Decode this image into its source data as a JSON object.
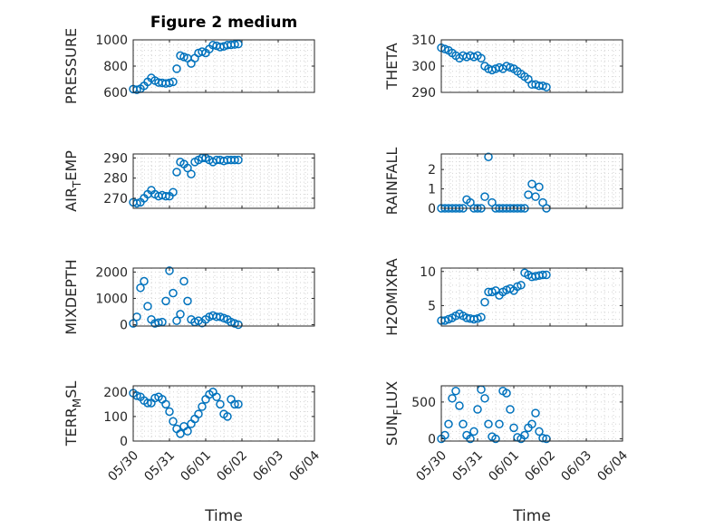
{
  "figure": {
    "title": "Figure 2 medium"
  },
  "chart_data": [
    {
      "type": "scatter",
      "title": "Figure 2 medium",
      "ylabel": "PRESSURE",
      "ylim": [
        600,
        1000
      ],
      "yticks": [
        600,
        800,
        1000
      ],
      "xlim": [
        0,
        5
      ],
      "grid": true,
      "marker": "o",
      "color": "#0072BD",
      "series": [
        {
          "x": [
            0.0,
            0.1,
            0.2,
            0.3,
            0.4,
            0.5,
            0.6,
            0.7,
            0.8,
            0.9,
            1.0,
            1.1,
            1.2,
            1.3,
            1.4,
            1.5,
            1.6,
            1.7,
            1.8,
            1.9,
            2.0,
            2.1,
            2.2,
            2.3,
            2.4,
            2.5,
            2.6,
            2.7,
            2.8,
            2.9
          ],
          "y": [
            625,
            620,
            628,
            650,
            680,
            710,
            690,
            675,
            672,
            668,
            672,
            680,
            780,
            880,
            870,
            860,
            820,
            860,
            900,
            910,
            900,
            930,
            960,
            955,
            945,
            950,
            960,
            962,
            965,
            968
          ]
        }
      ]
    },
    {
      "type": "scatter",
      "ylabel": "THETA",
      "ylim": [
        290,
        310
      ],
      "yticks": [
        290,
        300,
        310
      ],
      "xlim": [
        0,
        5
      ],
      "grid": true,
      "marker": "o",
      "color": "#0072BD",
      "series": [
        {
          "x": [
            0.0,
            0.1,
            0.2,
            0.3,
            0.4,
            0.5,
            0.6,
            0.7,
            0.8,
            0.9,
            1.0,
            1.1,
            1.2,
            1.3,
            1.4,
            1.5,
            1.6,
            1.7,
            1.8,
            1.9,
            2.0,
            2.1,
            2.2,
            2.3,
            2.4,
            2.5,
            2.6,
            2.7,
            2.8,
            2.9
          ],
          "y": [
            307,
            306.5,
            306,
            305,
            304,
            303,
            304,
            303.5,
            304,
            303.5,
            304,
            303,
            300,
            299,
            298.5,
            299,
            299.5,
            299,
            300,
            299.5,
            299,
            298,
            297,
            296,
            295,
            293,
            293,
            292.5,
            292.5,
            292
          ]
        }
      ]
    },
    {
      "type": "scatter",
      "ylabel": "AIR_TEMP",
      "ylim": [
        265,
        292
      ],
      "yticks": [
        270,
        280,
        290
      ],
      "xlim": [
        0,
        5
      ],
      "grid": true,
      "marker": "o",
      "color": "#0072BD",
      "series": [
        {
          "x": [
            0.0,
            0.1,
            0.2,
            0.3,
            0.4,
            0.5,
            0.6,
            0.7,
            0.8,
            0.9,
            1.0,
            1.1,
            1.2,
            1.3,
            1.4,
            1.5,
            1.6,
            1.7,
            1.8,
            1.9,
            2.0,
            2.1,
            2.2,
            2.3,
            2.4,
            2.5,
            2.6,
            2.7,
            2.8,
            2.9
          ],
          "y": [
            268,
            267.5,
            268,
            270,
            272,
            274,
            272,
            271,
            271.5,
            271,
            271,
            273,
            283,
            288,
            287,
            285,
            282,
            288,
            289,
            290,
            290,
            289,
            288,
            289,
            289,
            288.5,
            289,
            289,
            289,
            289
          ]
        }
      ]
    },
    {
      "type": "scatter",
      "ylabel": "RAINFALL",
      "ylim": [
        0,
        2.8
      ],
      "yticks": [
        0,
        1,
        2
      ],
      "xlim": [
        0,
        5
      ],
      "grid": true,
      "marker": "o",
      "color": "#0072BD",
      "series": [
        {
          "x": [
            0.0,
            0.1,
            0.2,
            0.3,
            0.4,
            0.5,
            0.6,
            0.7,
            0.8,
            0.9,
            1.0,
            1.1,
            1.2,
            1.3,
            1.4,
            1.5,
            1.6,
            1.7,
            1.8,
            1.9,
            2.0,
            2.1,
            2.2,
            2.3,
            2.4,
            2.5,
            2.6,
            2.7,
            2.8,
            2.9
          ],
          "y": [
            0,
            0,
            0,
            0,
            0,
            0,
            0,
            0.45,
            0.3,
            0,
            0,
            0,
            0.6,
            2.65,
            0.3,
            0,
            0,
            0,
            0,
            0,
            0,
            0,
            0,
            0,
            0.7,
            1.25,
            0.6,
            1.1,
            0.3,
            0
          ]
        }
      ]
    },
    {
      "type": "scatter",
      "ylabel": "MIXDEPTH",
      "ylim": [
        -50,
        2150
      ],
      "yticks": [
        0,
        1000,
        2000
      ],
      "xlim": [
        0,
        5
      ],
      "grid": true,
      "marker": "o",
      "color": "#0072BD",
      "series": [
        {
          "x": [
            0.0,
            0.1,
            0.2,
            0.3,
            0.4,
            0.5,
            0.6,
            0.7,
            0.8,
            0.9,
            1.0,
            1.1,
            1.2,
            1.3,
            1.4,
            1.5,
            1.6,
            1.7,
            1.8,
            1.9,
            2.0,
            2.1,
            2.2,
            2.3,
            2.4,
            2.5,
            2.6,
            2.7,
            2.8,
            2.9
          ],
          "y": [
            50,
            300,
            1400,
            1650,
            700,
            200,
            50,
            80,
            100,
            900,
            2050,
            1200,
            150,
            400,
            1650,
            900,
            200,
            100,
            150,
            60,
            200,
            300,
            350,
            300,
            300,
            250,
            200,
            100,
            50,
            0
          ]
        }
      ]
    },
    {
      "type": "scatter",
      "ylabel": "H2OMIXRA",
      "ylim": [
        2,
        10.5
      ],
      "yticks": [
        5,
        10
      ],
      "xlim": [
        0,
        5
      ],
      "grid": true,
      "marker": "o",
      "color": "#0072BD",
      "series": [
        {
          "x": [
            0.0,
            0.1,
            0.2,
            0.3,
            0.4,
            0.5,
            0.6,
            0.7,
            0.8,
            0.9,
            1.0,
            1.1,
            1.2,
            1.3,
            1.4,
            1.5,
            1.6,
            1.7,
            1.8,
            1.9,
            2.0,
            2.1,
            2.2,
            2.3,
            2.4,
            2.5,
            2.6,
            2.7,
            2.8,
            2.9
          ],
          "y": [
            2.8,
            2.8,
            3,
            3.2,
            3.5,
            3.8,
            3.5,
            3.2,
            3.1,
            3,
            3.1,
            3.3,
            5.5,
            7,
            7,
            7.2,
            6.5,
            7,
            7.3,
            7.5,
            7.2,
            7.8,
            8,
            9.8,
            9.5,
            9.2,
            9.3,
            9.4,
            9.5,
            9.5
          ]
        }
      ]
    },
    {
      "type": "scatter",
      "ylabel": "TERR_MSL",
      "xlabel": "Time",
      "ylim": [
        0,
        225
      ],
      "yticks": [
        0,
        100,
        200
      ],
      "xlim": [
        0,
        5
      ],
      "grid": true,
      "marker": "o",
      "color": "#0072BD",
      "x_tick_labels": [
        "05/30",
        "05/31",
        "06/01",
        "06/02",
        "06/03",
        "06/04"
      ],
      "series": [
        {
          "x": [
            0.0,
            0.1,
            0.2,
            0.3,
            0.4,
            0.5,
            0.6,
            0.7,
            0.8,
            0.9,
            1.0,
            1.1,
            1.2,
            1.3,
            1.4,
            1.5,
            1.6,
            1.7,
            1.8,
            1.9,
            2.0,
            2.1,
            2.2,
            2.3,
            2.4,
            2.5,
            2.6,
            2.7,
            2.8,
            2.9
          ],
          "y": [
            195,
            185,
            180,
            165,
            155,
            155,
            175,
            180,
            170,
            150,
            120,
            80,
            50,
            30,
            60,
            40,
            70,
            90,
            110,
            140,
            170,
            190,
            200,
            180,
            150,
            110,
            100,
            170,
            150,
            150
          ]
        }
      ]
    },
    {
      "type": "scatter",
      "ylabel": "SUN_FLUX",
      "xlabel": "Time",
      "ylim": [
        -30,
        720
      ],
      "yticks": [
        0,
        500
      ],
      "xlim": [
        0,
        5
      ],
      "grid": true,
      "marker": "o",
      "color": "#0072BD",
      "x_tick_labels": [
        "05/30",
        "05/31",
        "06/01",
        "06/02",
        "06/03",
        "06/04"
      ],
      "series": [
        {
          "x": [
            0.0,
            0.1,
            0.2,
            0.3,
            0.4,
            0.5,
            0.6,
            0.7,
            0.8,
            0.9,
            1.0,
            1.1,
            1.2,
            1.3,
            1.4,
            1.5,
            1.6,
            1.7,
            1.8,
            1.9,
            2.0,
            2.1,
            2.2,
            2.3,
            2.4,
            2.5,
            2.6,
            2.7,
            2.8,
            2.9
          ],
          "y": [
            0,
            50,
            200,
            550,
            650,
            450,
            200,
            50,
            0,
            100,
            400,
            670,
            550,
            200,
            30,
            0,
            200,
            650,
            620,
            400,
            150,
            20,
            0,
            50,
            150,
            200,
            350,
            100,
            10,
            0
          ]
        }
      ]
    }
  ]
}
